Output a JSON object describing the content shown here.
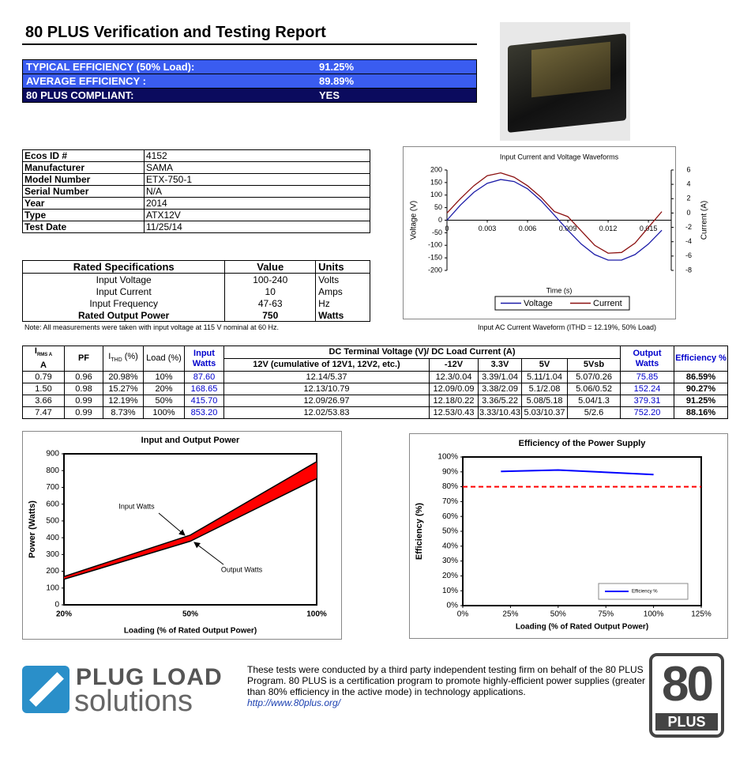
{
  "header": {
    "title": "80 PLUS Verification and Testing Report"
  },
  "summary": {
    "rows": [
      [
        "TYPICAL EFFICIENCY (50% Load):",
        "91.25%"
      ],
      [
        "AVERAGE EFFICIENCY :",
        "89.89%"
      ],
      [
        "80 PLUS COMPLIANT:",
        "YES"
      ]
    ]
  },
  "info_table": {
    "rows": [
      [
        "Ecos ID #",
        "4152"
      ],
      [
        "Manufacturer",
        "SAMA"
      ],
      [
        "Model Number",
        "ETX-750-1"
      ],
      [
        "Serial Number",
        "N/A"
      ],
      [
        "Year",
        "2014"
      ],
      [
        "Type",
        "ATX12V"
      ],
      [
        "Test Date",
        "11/25/14"
      ]
    ]
  },
  "rated_specs": {
    "header": [
      "Rated Specifications",
      "Value",
      "Units"
    ],
    "rows": [
      [
        "Input Voltage",
        "100-240",
        "Volts"
      ],
      [
        "Input Current",
        "10",
        "Amps"
      ],
      [
        "Input Frequency",
        "47-63",
        "Hz"
      ],
      [
        "Rated Output Power",
        "750",
        "Watts"
      ]
    ]
  },
  "note": "Note: All measurements were taken with input voltage at 115 V nominal at 60 Hz.",
  "waveform_caption": "Input AC Current Waveform (ITHD = 12.19%, 50% Load)",
  "test_table": {
    "header": {
      "irms": {
        "main": "I",
        "sub": "RMS A",
        "unit": "A"
      },
      "pf": "PF",
      "ithd": {
        "main": "I",
        "sub": "THD",
        "suffix": " (%)"
      },
      "load": "Load (%)",
      "input": "Input Watts",
      "dc": "DC Terminal Voltage (V)/ DC Load Current (A)",
      "output": "Output Watts",
      "efficiency": "Efficiency %"
    },
    "subheader": [
      "12V (cumulative of 12V1, 12V2, etc.)",
      "-12V",
      "3.3V",
      "5V",
      "5Vsb"
    ],
    "rows": [
      [
        "0.79",
        "0.96",
        "20.98%",
        "10%",
        "87.60",
        "12.14/5.37",
        "12.3/0.04",
        "3.39/1.04",
        "5.11/1.04",
        "5.07/0.26",
        "75.85",
        "86.59%"
      ],
      [
        "1.50",
        "0.98",
        "15.27%",
        "20%",
        "168.65",
        "12.13/10.79",
        "12.09/0.09",
        "3.38/2.09",
        "5.1/2.08",
        "5.06/0.52",
        "152.24",
        "90.27%"
      ],
      [
        "3.66",
        "0.99",
        "12.19%",
        "50%",
        "415.70",
        "12.09/26.97",
        "12.18/0.22",
        "3.36/5.22",
        "5.08/5.18",
        "5.04/1.3",
        "379.31",
        "91.25%"
      ],
      [
        "7.47",
        "0.99",
        "8.73%",
        "100%",
        "853.20",
        "12.02/53.83",
        "12.53/0.43",
        "3.33/10.43",
        "5.03/10.37",
        "5/2.6",
        "752.20",
        "88.16%"
      ]
    ]
  },
  "chart_data": [
    {
      "type": "line",
      "title": "Input Current and Voltage Waveforms",
      "xlabel": "Time (s)",
      "ylabel": "Voltage (V)",
      "y2label": "Current (A)",
      "x": [
        0,
        0.001,
        0.002,
        0.003,
        0.004,
        0.005,
        0.006,
        0.007,
        0.008,
        0.009,
        0.01,
        0.011,
        0.012,
        0.013,
        0.014,
        0.015,
        0.016
      ],
      "xlim": [
        0,
        0.0167
      ],
      "xticks": [
        0,
        0.003,
        0.006,
        0.009,
        0.012,
        0.015
      ],
      "ylim": [
        -200,
        200
      ],
      "yticks": [
        -200,
        -150,
        -100,
        -50,
        0,
        50,
        100,
        150,
        200
      ],
      "y2lim": [
        -8,
        6
      ],
      "y2ticks": [
        -8,
        -6,
        -4,
        -2,
        0,
        2,
        4,
        6
      ],
      "series": [
        {
          "name": "Voltage",
          "color": "#1c1ca8",
          "values": [
            0,
            60,
            111,
            147,
            162,
            154,
            125,
            78,
            20,
            -40,
            -95,
            -137,
            -159,
            -159,
            -137,
            -95,
            -40
          ]
        },
        {
          "name": "Current",
          "color": "#8b1010",
          "axis": "y2",
          "values": [
            0,
            2,
            3.8,
            5.2,
            5.6,
            5,
            3.8,
            2.2,
            0.2,
            -0.5,
            -2.5,
            -4.5,
            -5.6,
            -5.5,
            -4.2,
            -2,
            0.2
          ]
        }
      ],
      "legend": "bottom"
    },
    {
      "type": "area",
      "title": "Input and Output Power",
      "xlabel": "Loading (% of Rated Output Power)",
      "ylabel": "Power (Watts)",
      "categories": [
        "20%",
        "50%",
        "100%"
      ],
      "ylim": [
        0,
        900
      ],
      "yticks": [
        0,
        100,
        200,
        300,
        400,
        500,
        600,
        700,
        800,
        900
      ],
      "series": [
        {
          "color": "#000000",
          "values": [
            168.65,
            415.7,
            853.2
          ]
        },
        {
          "color": "#000000",
          "values": [
            152.24,
            379.31,
            752.2
          ]
        }
      ],
      "fill": "#ff0000",
      "annotations": [
        {
          "text": "Input Watts"
        },
        {
          "text": "Output Watts"
        }
      ]
    },
    {
      "type": "line",
      "title": "Efficiency of the Power Supply",
      "xlabel": "Loading (% of Rated Output Power)",
      "ylabel": "Efficiency (%)",
      "x": [
        20,
        50,
        100
      ],
      "xlim": [
        0,
        125
      ],
      "xticks": [
        {
          "value": 0,
          "label": "0%"
        },
        {
          "value": 25,
          "label": "25%"
        },
        {
          "value": 50,
          "label": "50%"
        },
        {
          "value": 75,
          "label": "75%"
        },
        {
          "value": 100,
          "label": "100%"
        },
        {
          "value": 125,
          "label": "125%"
        }
      ],
      "ylim": [
        0,
        100
      ],
      "yticks": [
        {
          "value": 0,
          "label": "0%"
        },
        {
          "value": 10,
          "label": "10%"
        },
        {
          "value": 20,
          "label": "20%"
        },
        {
          "value": 30,
          "label": "30%"
        },
        {
          "value": 40,
          "label": "40%"
        },
        {
          "value": 50,
          "label": "50%"
        },
        {
          "value": 60,
          "label": "60%"
        },
        {
          "value": 70,
          "label": "70%"
        },
        {
          "value": 80,
          "label": "80%"
        },
        {
          "value": 90,
          "label": "90%"
        },
        {
          "value": 100,
          "label": "100%"
        }
      ],
      "series": [
        {
          "name": "Efficiency %",
          "color": "#0000ff",
          "values": [
            90.27,
            91.25,
            88.16
          ]
        }
      ],
      "reference_line": {
        "value": 80,
        "color": "#ff0000"
      },
      "legend": "lower right"
    }
  ],
  "footer": {
    "logo_line1": "PLUG LOAD",
    "logo_line2": "solutions",
    "text": "These tests were conducted by a third party independent testing firm on behalf of the 80 PLUS Program. 80 PLUS is a certification program to promote highly-efficient power supplies (greater than 80% efficiency in the active mode) in technology applications.",
    "link": "http://www.80plus.org/",
    "badge_number": "80",
    "badge_text": "PLUS"
  }
}
